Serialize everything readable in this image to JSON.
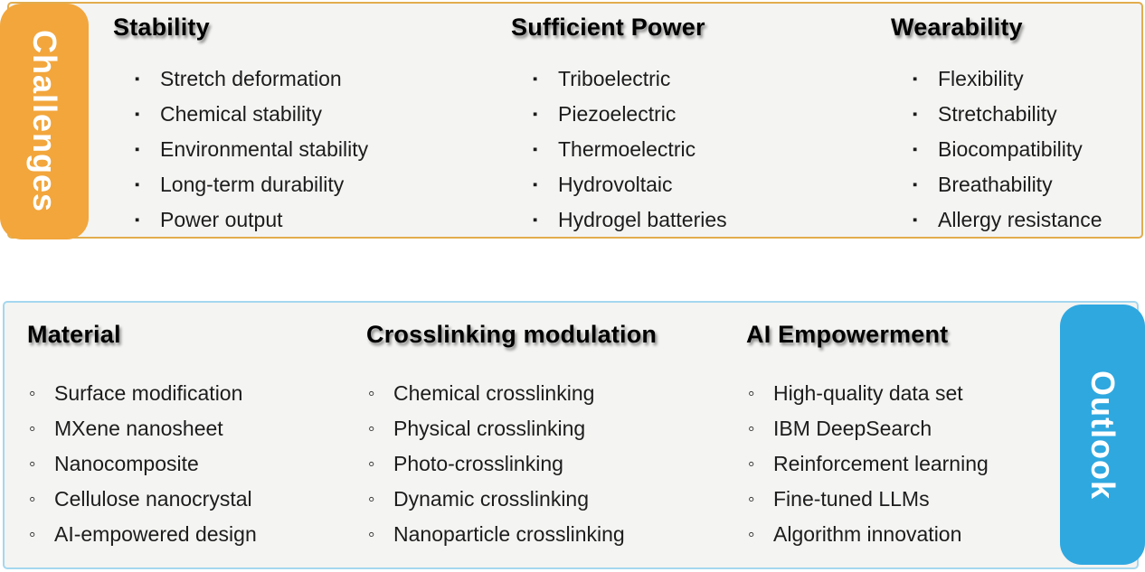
{
  "bullets": {
    "square": "▪",
    "circle": "◦"
  },
  "colors": {
    "challenges_tab": "#F2A63C",
    "challenges_border": "#E2AC4D",
    "outlook_tab": "#2FA8E0",
    "outlook_border": "#A4D7EF",
    "panel_background": "#F4F4F2",
    "tab_text": "#FFFFFF",
    "body_text": "#1C1C1C"
  },
  "challenges": {
    "label": "Challenges",
    "columns": [
      {
        "heading": "Stability",
        "items": [
          "Stretch deformation",
          "Chemical stability",
          "Environmental stability",
          "Long-term durability",
          "Power output"
        ]
      },
      {
        "heading": "Sufficient Power",
        "items": [
          "Triboelectric",
          "Piezoelectric",
          "Thermoelectric",
          "Hydrovoltaic",
          "Hydrogel batteries"
        ]
      },
      {
        "heading": "Wearability",
        "items": [
          "Flexibility",
          "Stretchability",
          "Biocompatibility",
          "Breathability",
          "Allergy resistance"
        ]
      }
    ]
  },
  "outlook": {
    "label": "Outlook",
    "columns": [
      {
        "heading": "Material",
        "items": [
          "Surface modification",
          "MXene nanosheet",
          "Nanocomposite",
          "Cellulose nanocrystal",
          "AI-empowered design"
        ]
      },
      {
        "heading": "Crosslinking modulation",
        "items": [
          "Chemical crosslinking",
          "Physical crosslinking",
          "Photo-crosslinking",
          "Dynamic crosslinking",
          "Nanoparticle crosslinking"
        ]
      },
      {
        "heading": "AI Empowerment",
        "items": [
          "High-quality data set",
          "IBM DeepSearch",
          "Reinforcement learning",
          "Fine-tuned LLMs",
          "Algorithm innovation"
        ]
      }
    ]
  }
}
